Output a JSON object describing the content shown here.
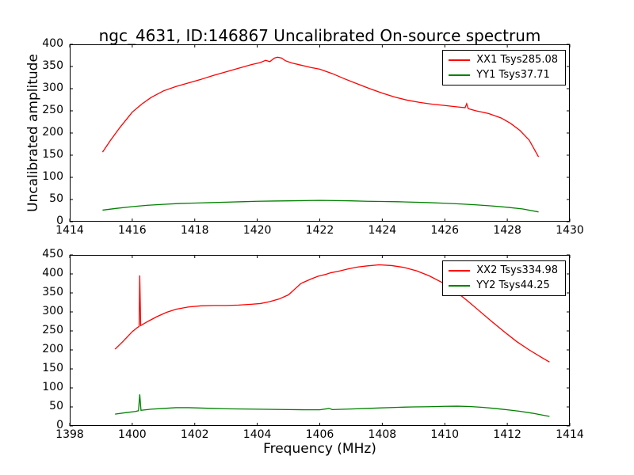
{
  "figure": {
    "title": "ngc_4631, ID:146867 Uncalibrated On-source spectrum",
    "xlabel": "Frequency (MHz)",
    "ylabel": "Uncalibrated amplitude",
    "background_color": "#ffffff",
    "axis_color": "#000000"
  },
  "chart_data": [
    {
      "type": "line",
      "title": "ngc_4631, ID:146867 Uncalibrated On-source spectrum",
      "xlabel": "",
      "ylabel": "Uncalibrated amplitude",
      "xlim": [
        1414,
        1430
      ],
      "ylim": [
        0,
        400
      ],
      "xticks": [
        1414,
        1416,
        1418,
        1420,
        1422,
        1424,
        1426,
        1428,
        1430
      ],
      "yticks": [
        0,
        50,
        100,
        150,
        200,
        250,
        300,
        350,
        400
      ],
      "grid": false,
      "legend_position": "upper-right",
      "legend": [
        {
          "label": "XX1 Tsys285.08",
          "color": "#ff0000"
        },
        {
          "label": "YY1 Tsys37.71",
          "color": "#008000"
        }
      ],
      "series": [
        {
          "name": "XX1",
          "color": "#ff0000",
          "x": [
            1415.05,
            1415.3,
            1415.6,
            1416.0,
            1416.3,
            1416.6,
            1417.0,
            1417.4,
            1417.8,
            1418.2,
            1418.6,
            1419.0,
            1419.4,
            1419.8,
            1420.1,
            1420.27,
            1420.4,
            1420.55,
            1420.65,
            1420.78,
            1420.9,
            1421.1,
            1421.4,
            1421.7,
            1422.0,
            1422.4,
            1422.8,
            1423.2,
            1423.6,
            1424.0,
            1424.4,
            1424.8,
            1425.2,
            1425.6,
            1426.0,
            1426.4,
            1426.65,
            1426.7,
            1426.75,
            1427.0,
            1427.4,
            1427.8,
            1428.1,
            1428.4,
            1428.7,
            1429.0
          ],
          "y": [
            157,
            183,
            212,
            247,
            265,
            280,
            295,
            305,
            313,
            321,
            330,
            338,
            346,
            354,
            359,
            364,
            361,
            369,
            371,
            369,
            363,
            358,
            353,
            348,
            344,
            334,
            322,
            311,
            300,
            290,
            281,
            274,
            269,
            265,
            262,
            259,
            257,
            266,
            255,
            250,
            244,
            234,
            222,
            206,
            184,
            146
          ]
        },
        {
          "name": "YY1",
          "color": "#008000",
          "x": [
            1415.05,
            1415.5,
            1416.0,
            1416.5,
            1417.0,
            1417.5,
            1418.0,
            1418.5,
            1419.0,
            1419.5,
            1420.0,
            1420.5,
            1421.0,
            1421.5,
            1422.0,
            1422.5,
            1423.0,
            1423.5,
            1424.0,
            1424.5,
            1425.0,
            1425.5,
            1426.0,
            1426.5,
            1427.0,
            1427.5,
            1428.0,
            1428.5,
            1429.0
          ],
          "y": [
            26,
            30,
            34,
            37,
            39,
            41,
            42,
            43,
            44,
            45,
            46,
            46.5,
            47,
            47.5,
            48,
            47.5,
            47,
            46,
            45.5,
            45,
            44,
            43,
            41.5,
            40,
            38,
            35.5,
            32.5,
            28.5,
            22
          ]
        }
      ]
    },
    {
      "type": "line",
      "title": "",
      "xlabel": "Frequency (MHz)",
      "ylabel": "",
      "xlim": [
        1398,
        1414
      ],
      "ylim": [
        0,
        450
      ],
      "xticks": [
        1398,
        1400,
        1402,
        1404,
        1406,
        1408,
        1410,
        1412,
        1414
      ],
      "yticks": [
        0,
        50,
        100,
        150,
        200,
        250,
        300,
        350,
        400,
        450
      ],
      "grid": false,
      "legend_position": "upper-right",
      "legend": [
        {
          "label": "XX2 Tsys334.98",
          "color": "#ff0000"
        },
        {
          "label": "YY2 Tsys44.25",
          "color": "#008000"
        }
      ],
      "series": [
        {
          "name": "XX2",
          "color": "#ff0000",
          "x": [
            1399.45,
            1399.7,
            1400.0,
            1400.15,
            1400.22,
            1400.24,
            1400.27,
            1400.5,
            1400.8,
            1401.1,
            1401.4,
            1401.8,
            1402.2,
            1402.6,
            1403.0,
            1403.4,
            1403.8,
            1404.1,
            1404.4,
            1404.7,
            1405.0,
            1405.2,
            1405.4,
            1405.7,
            1405.95,
            1406.2,
            1406.35,
            1406.6,
            1406.9,
            1407.2,
            1407.5,
            1407.9,
            1408.3,
            1408.7,
            1409.1,
            1409.5,
            1409.9,
            1410.3,
            1410.7,
            1411.1,
            1411.5,
            1411.9,
            1412.3,
            1412.7,
            1413.1,
            1413.35
          ],
          "y": [
            202,
            222,
            248,
            258,
            262,
            396,
            264,
            275,
            288,
            299,
            307,
            313,
            316,
            317,
            317,
            318,
            320,
            322,
            327,
            334,
            345,
            360,
            375,
            386,
            394,
            399,
            403,
            407,
            413,
            418,
            421,
            424,
            422,
            417,
            408,
            395,
            378,
            357,
            331,
            303,
            275,
            248,
            222,
            200,
            180,
            168
          ]
        },
        {
          "name": "YY2",
          "color": "#008000",
          "x": [
            1399.45,
            1399.8,
            1400.1,
            1400.2,
            1400.24,
            1400.28,
            1400.6,
            1401.0,
            1401.4,
            1401.8,
            1402.2,
            1402.6,
            1403.0,
            1403.5,
            1404.0,
            1404.5,
            1405.0,
            1405.5,
            1406.0,
            1406.3,
            1406.4,
            1406.6,
            1407.0,
            1407.5,
            1408.0,
            1408.5,
            1409.0,
            1409.5,
            1410.0,
            1410.4,
            1410.8,
            1411.2,
            1411.6,
            1412.0,
            1412.4,
            1412.8,
            1413.1,
            1413.35
          ],
          "y": [
            31,
            35,
            38,
            40,
            83,
            41,
            44,
            46,
            48,
            48,
            47,
            46,
            45,
            44.5,
            44,
            43.5,
            43,
            42.5,
            42.5,
            46,
            43,
            43.5,
            44.5,
            46,
            47.5,
            49,
            50,
            50.5,
            51.5,
            52,
            51,
            49,
            46,
            42.5,
            38.5,
            33.5,
            29,
            25
          ]
        }
      ]
    }
  ]
}
